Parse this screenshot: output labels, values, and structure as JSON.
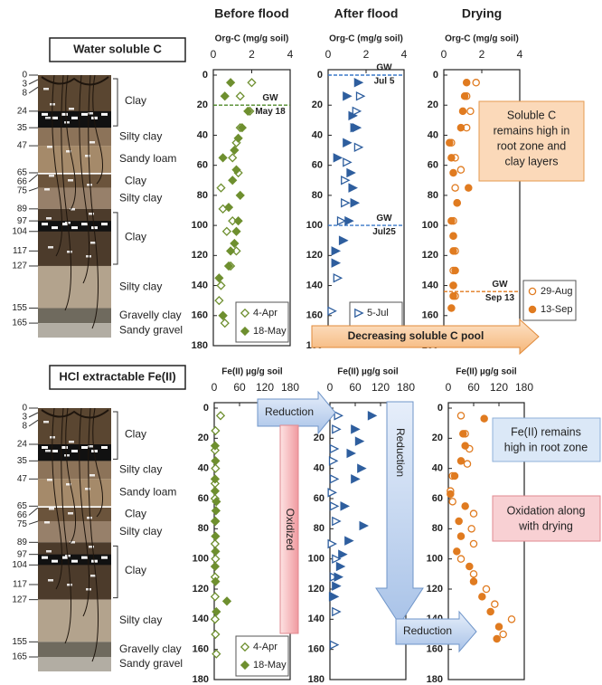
{
  "sections": [
    "Water soluble C",
    "HCl extractable Fe(II)"
  ],
  "soil_profile": {
    "depth_labels": [
      0,
      3,
      8,
      24,
      35,
      47,
      65,
      66,
      75,
      89,
      97,
      104,
      117,
      127,
      155,
      165
    ],
    "layers": [
      "Clay",
      "Silty clay",
      "Sandy loam",
      "Clay",
      "Silty clay",
      "Clay",
      "Silty clay",
      "Gravelly clay",
      "Sandy gravel"
    ]
  },
  "arrows": {
    "decreasing": "Decreasing soluble C pool",
    "oxidized": "Oxidized",
    "reduction_top": "Reduction",
    "reduction_vertical": "Reduction",
    "reduction_bottom": "Reduction"
  },
  "callouts": {
    "soluble_c": [
      "Soluble C",
      "remains high in",
      "root zone and",
      "clay layers"
    ],
    "fe_root": [
      "Fe(II) remains",
      "high in root zone"
    ],
    "oxidation": [
      "Oxidation along",
      "with drying"
    ]
  },
  "chart_data": [
    {
      "type": "scatter",
      "title": "Before flood",
      "title_color": "#6e9a2e",
      "xlabel": "Org-C (mg/g soil)",
      "xlim": [
        0,
        4
      ],
      "xticks": [
        0,
        2,
        4
      ],
      "ylim": [
        0,
        180
      ],
      "yticks": [
        0,
        20,
        40,
        60,
        80,
        100,
        120,
        140,
        160,
        180
      ],
      "legend": "lower right",
      "series": [
        {
          "name": "4-Apr",
          "color": "#6e8f2f",
          "marker": "diamond",
          "filled": false,
          "x": [
            2.0,
            1.4,
            1.9,
            1.4,
            1.2,
            1.0,
            1.3,
            0.4,
            0.5,
            1.0,
            0.7,
            1.2,
            0.9,
            0.4,
            0.3,
            0.5,
            0.6
          ],
          "y": [
            5,
            14,
            24,
            35,
            45,
            55,
            65,
            75,
            89,
            97,
            104,
            117,
            127,
            140,
            150,
            160,
            165
          ]
        },
        {
          "name": "18-May",
          "color": "#6e8f2f",
          "marker": "diamond",
          "filled": true,
          "x": [
            0.9,
            0.6,
            1.8,
            1.5,
            1.3,
            1.1,
            0.5,
            1.2,
            1.0,
            1.4,
            0.8,
            1.3,
            1.2,
            1.1,
            0.9,
            0.8,
            0.3,
            0.5
          ],
          "y": [
            5,
            14,
            24,
            35,
            42,
            50,
            55,
            63,
            70,
            80,
            88,
            97,
            104,
            112,
            117,
            127,
            135,
            160
          ]
        }
      ],
      "annotations": [
        {
          "depth": 20,
          "label": "GW",
          "date": "May 18",
          "color": "#4f8a2a"
        }
      ]
    },
    {
      "type": "scatter",
      "title": "After flood",
      "title_color": "#4a7fc0",
      "xlabel": "Org-C (mg/g soil)",
      "xlim": [
        0,
        4
      ],
      "xticks": [
        0,
        2,
        4
      ],
      "ylim": [
        0,
        180
      ],
      "yticks": [
        0,
        20,
        40,
        60,
        80,
        100,
        120,
        140,
        160,
        180
      ],
      "legend": "lower right",
      "series": [
        {
          "name": "5-Jul",
          "color": "#2e5e9e",
          "marker": "triangle",
          "filled": false,
          "x": [
            1.7,
            1.5,
            1.5,
            1.6,
            1.0,
            0.9,
            0.9,
            0.7,
            0.8,
            0.5,
            0.2
          ],
          "y": [
            14,
            24,
            35,
            48,
            58,
            70,
            85,
            97,
            110,
            135,
            157
          ]
        },
        {
          "name": "25-Jul",
          "color": "#2e5e9e",
          "marker": "triangle",
          "filled": true,
          "x": [
            1.6,
            1.0,
            1.3,
            1.4,
            1.0,
            0.5,
            1.2,
            1.3,
            1.4,
            1.1,
            0.8,
            0.4,
            0.4
          ],
          "y": [
            5,
            14,
            27,
            35,
            45,
            55,
            65,
            75,
            85,
            97,
            110,
            117,
            125
          ]
        }
      ],
      "annotations": [
        {
          "depth": 0,
          "label": "GW",
          "date": "Jul 5",
          "color": "#3a78c8"
        },
        {
          "depth": 100,
          "label": "GW",
          "date": "Jul25",
          "color": "#3a78c8"
        }
      ]
    },
    {
      "type": "scatter",
      "title": "Drying",
      "title_color": "#e07b20",
      "xlabel": "Org-C (mg/g soil)",
      "xlim": [
        0,
        4
      ],
      "xticks": [
        0,
        2,
        4
      ],
      "ylim": [
        0,
        180
      ],
      "yticks": [
        0,
        20,
        40,
        60,
        80,
        100,
        120,
        140,
        160,
        180
      ],
      "legend": "right",
      "series": [
        {
          "name": "29-Aug",
          "color": "#e07b20",
          "marker": "circle",
          "filled": false,
          "x": [
            1.7,
            1.2,
            1.4,
            1.2,
            0.4,
            0.6,
            0.9,
            0.6,
            0.7,
            0.5,
            0.5,
            0.6,
            0.5,
            0.5,
            0.6
          ],
          "y": [
            5,
            14,
            24,
            35,
            45,
            55,
            63,
            75,
            85,
            97,
            107,
            117,
            130,
            140,
            147
          ]
        },
        {
          "name": "13-Sep",
          "color": "#e07b20",
          "marker": "circle",
          "filled": true,
          "x": [
            1.2,
            1.1,
            1.0,
            0.9,
            0.3,
            0.4,
            0.5,
            1.3,
            0.7,
            0.4,
            0.5,
            0.5,
            0.6,
            0.5,
            0.5,
            0.4
          ],
          "y": [
            5,
            14,
            24,
            35,
            45,
            55,
            65,
            75,
            85,
            97,
            107,
            117,
            130,
            140,
            147,
            155
          ]
        }
      ],
      "annotations": [
        {
          "depth": 144,
          "label": "GW",
          "date": "Sep 13",
          "color": "#e07b20"
        }
      ]
    },
    {
      "type": "scatter",
      "xlabel": "Fe(II) µg/g soil",
      "xlim": [
        0,
        180
      ],
      "xticks": [
        0,
        60,
        120,
        180
      ],
      "ylim": [
        0,
        180
      ],
      "yticks": [
        0,
        20,
        40,
        60,
        80,
        100,
        120,
        140,
        160,
        180
      ],
      "legend": "lower right",
      "series": [
        {
          "name": "4-Apr",
          "color": "#6e8f2f",
          "marker": "diamond",
          "filled": false,
          "x": [
            15,
            3,
            2,
            3,
            2,
            2,
            3,
            2,
            3,
            2,
            2,
            2,
            3,
            5
          ],
          "y": [
            5,
            15,
            28,
            40,
            50,
            60,
            75,
            90,
            100,
            112,
            125,
            140,
            150,
            163
          ]
        },
        {
          "name": "18-May",
          "color": "#6e8f2f",
          "marker": "diamond",
          "filled": true,
          "x": [
            2,
            3,
            2,
            2,
            5,
            4,
            2,
            3,
            3,
            2,
            3,
            30,
            5
          ],
          "y": [
            25,
            35,
            47,
            55,
            62,
            68,
            75,
            85,
            95,
            105,
            115,
            128,
            135
          ]
        }
      ]
    },
    {
      "type": "scatter",
      "xlabel": "Fe(II) µg/g soil",
      "xlim": [
        0,
        180
      ],
      "xticks": [
        0,
        60,
        120,
        180
      ],
      "ylim": [
        0,
        180
      ],
      "yticks": [
        0,
        20,
        40,
        60,
        80,
        100,
        120,
        140,
        160,
        180
      ],
      "series": [
        {
          "color": "#2e5e9e",
          "marker": "triangle",
          "filled": false,
          "x": [
            20,
            15,
            10,
            8,
            10,
            5,
            10,
            15,
            5,
            15,
            10,
            8,
            15,
            10
          ],
          "y": [
            5,
            14,
            27,
            35,
            47,
            56,
            65,
            75,
            90,
            100,
            112,
            125,
            135,
            157
          ]
        },
        {
          "color": "#2e5e9e",
          "marker": "triangle",
          "filled": true,
          "x": [
            100,
            60,
            70,
            50,
            75,
            60,
            35,
            80,
            45,
            30,
            25,
            20,
            15,
            10
          ],
          "y": [
            5,
            14,
            22,
            30,
            40,
            47,
            65,
            78,
            88,
            97,
            105,
            112,
            118,
            125
          ]
        }
      ]
    },
    {
      "type": "scatter",
      "xlabel": "Fe(II) µg/g soil",
      "xlim": [
        0,
        180
      ],
      "xticks": [
        0,
        60,
        120,
        180
      ],
      "ylim": [
        0,
        180
      ],
      "yticks": [
        0,
        20,
        40,
        60,
        80,
        100,
        120,
        140,
        160,
        180
      ],
      "series": [
        {
          "color": "#e07b20",
          "marker": "circle",
          "filled": false,
          "x": [
            30,
            40,
            50,
            45,
            10,
            5,
            10,
            60,
            55,
            60,
            30,
            60,
            90,
            110,
            150,
            130
          ],
          "y": [
            5,
            17,
            27,
            37,
            45,
            55,
            62,
            70,
            80,
            90,
            100,
            110,
            120,
            130,
            140,
            150
          ]
        },
        {
          "color": "#e07b20",
          "marker": "circle",
          "filled": true,
          "x": [
            85,
            35,
            40,
            30,
            15,
            5,
            40,
            25,
            30,
            20,
            50,
            60,
            80,
            100,
            120,
            115
          ],
          "y": [
            7,
            17,
            25,
            35,
            45,
            57,
            65,
            75,
            85,
            95,
            105,
            115,
            125,
            135,
            145,
            153
          ]
        }
      ]
    }
  ]
}
